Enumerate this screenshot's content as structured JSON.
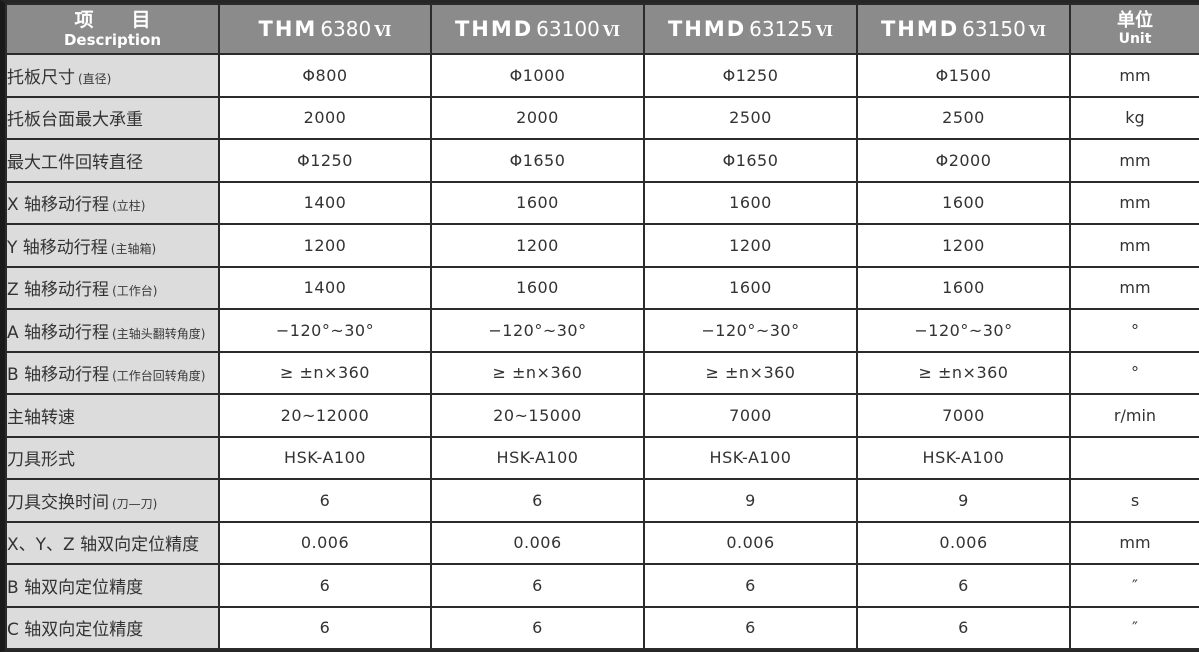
{
  "table": {
    "header": {
      "description": {
        "zh": "项　　目",
        "en": "Description"
      },
      "models": [
        {
          "brand": "THM",
          "number": "6380",
          "series": "Ⅵ"
        },
        {
          "brand": "THMD",
          "number": "63100",
          "series": "Ⅵ"
        },
        {
          "brand": "THMD",
          "number": "63125",
          "series": "Ⅵ"
        },
        {
          "brand": "THMD",
          "number": "63150",
          "series": "Ⅵ"
        }
      ],
      "unit": {
        "zh": "单位",
        "en": "Unit"
      }
    },
    "rows": [
      {
        "label": "托板尺寸",
        "note": "(直径)",
        "values": [
          "Φ800",
          "Φ1000",
          "Φ1250",
          "Φ1500"
        ],
        "unit": "mm"
      },
      {
        "label": "托板台面最大承重",
        "note": "",
        "values": [
          "2000",
          "2000",
          "2500",
          "2500"
        ],
        "unit": "kg"
      },
      {
        "label": "最大工件回转直径",
        "note": "",
        "values": [
          "Φ1250",
          "Φ1650",
          "Φ1650",
          "Φ2000"
        ],
        "unit": "mm"
      },
      {
        "label": "X 轴移动行程",
        "note": "(立柱)",
        "values": [
          "1400",
          "1600",
          "1600",
          "1600"
        ],
        "unit": "mm"
      },
      {
        "label": "Y 轴移动行程",
        "note": "(主轴箱)",
        "values": [
          "1200",
          "1200",
          "1200",
          "1200"
        ],
        "unit": "mm"
      },
      {
        "label": "Z 轴移动行程",
        "note": "(工作台)",
        "values": [
          "1400",
          "1600",
          "1600",
          "1600"
        ],
        "unit": "mm"
      },
      {
        "label": "A 轴移动行程",
        "note": "(主轴头翻转角度)",
        "values": [
          "−120°~30°",
          "−120°~30°",
          "−120°~30°",
          "−120°~30°"
        ],
        "unit": "°"
      },
      {
        "label": "B 轴移动行程",
        "note": "(工作台回转角度)",
        "values": [
          "≥ ±n×360",
          "≥ ±n×360",
          "≥ ±n×360",
          "≥ ±n×360"
        ],
        "unit": "°"
      },
      {
        "label": "主轴转速",
        "note": "",
        "values": [
          "20~12000",
          "20~15000",
          "7000",
          "7000"
        ],
        "unit": "r/min"
      },
      {
        "label": "刀具形式",
        "note": "",
        "values": [
          "HSK-A100",
          "HSK-A100",
          "HSK-A100",
          "HSK-A100"
        ],
        "unit": ""
      },
      {
        "label": "刀具交换时间",
        "note": "(刀—刀)",
        "values": [
          "6",
          "6",
          "9",
          "9"
        ],
        "unit": "s"
      },
      {
        "label": "X、Y、Z 轴双向定位精度",
        "note": "",
        "values": [
          "0.006",
          "0.006",
          "0.006",
          "0.006"
        ],
        "unit": "mm"
      },
      {
        "label": "B 轴双向定位精度",
        "note": "",
        "values": [
          "6",
          "6",
          "6",
          "6"
        ],
        "unit": "″"
      },
      {
        "label": "C 轴双向定位精度",
        "note": "",
        "values": [
          "6",
          "6",
          "6",
          "6"
        ],
        "unit": "″"
      }
    ],
    "colors": {
      "header_bg": "#8b8b8b",
      "header_text": "#ffffff",
      "label_bg": "#dcdcdc",
      "cell_bg": "#ffffff",
      "border": "#2b2b2b",
      "text": "#333333"
    }
  }
}
